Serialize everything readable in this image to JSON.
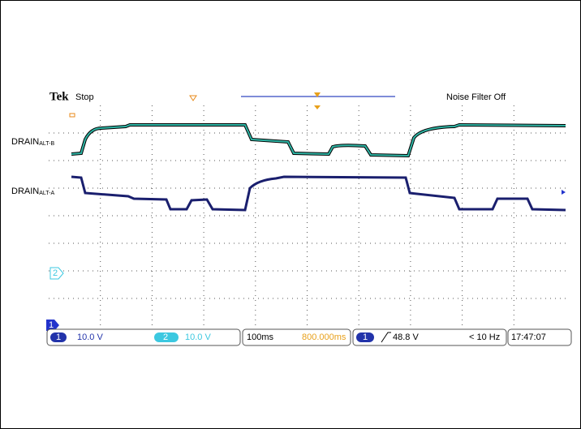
{
  "header": {
    "brand": "Tek",
    "state": "Stop",
    "filter": "Noise Filter Off"
  },
  "labels": [
    {
      "main": "DRAIN",
      "sub": "ALT-B"
    },
    {
      "main": "DRAIN",
      "sub": "ALT-A"
    }
  ],
  "markers": {
    "ch2": "2",
    "ch1": "1"
  },
  "status": {
    "ch1": "1",
    "ch1_scale": "10.0 V",
    "ch2": "2",
    "ch2_scale": "10.0 V",
    "timebase": "100ms",
    "position": "800.000ms",
    "trig_ch": "1",
    "trig_level": "48.8 V",
    "freq": "< 10 Hz",
    "time": "17:47:07"
  }
}
